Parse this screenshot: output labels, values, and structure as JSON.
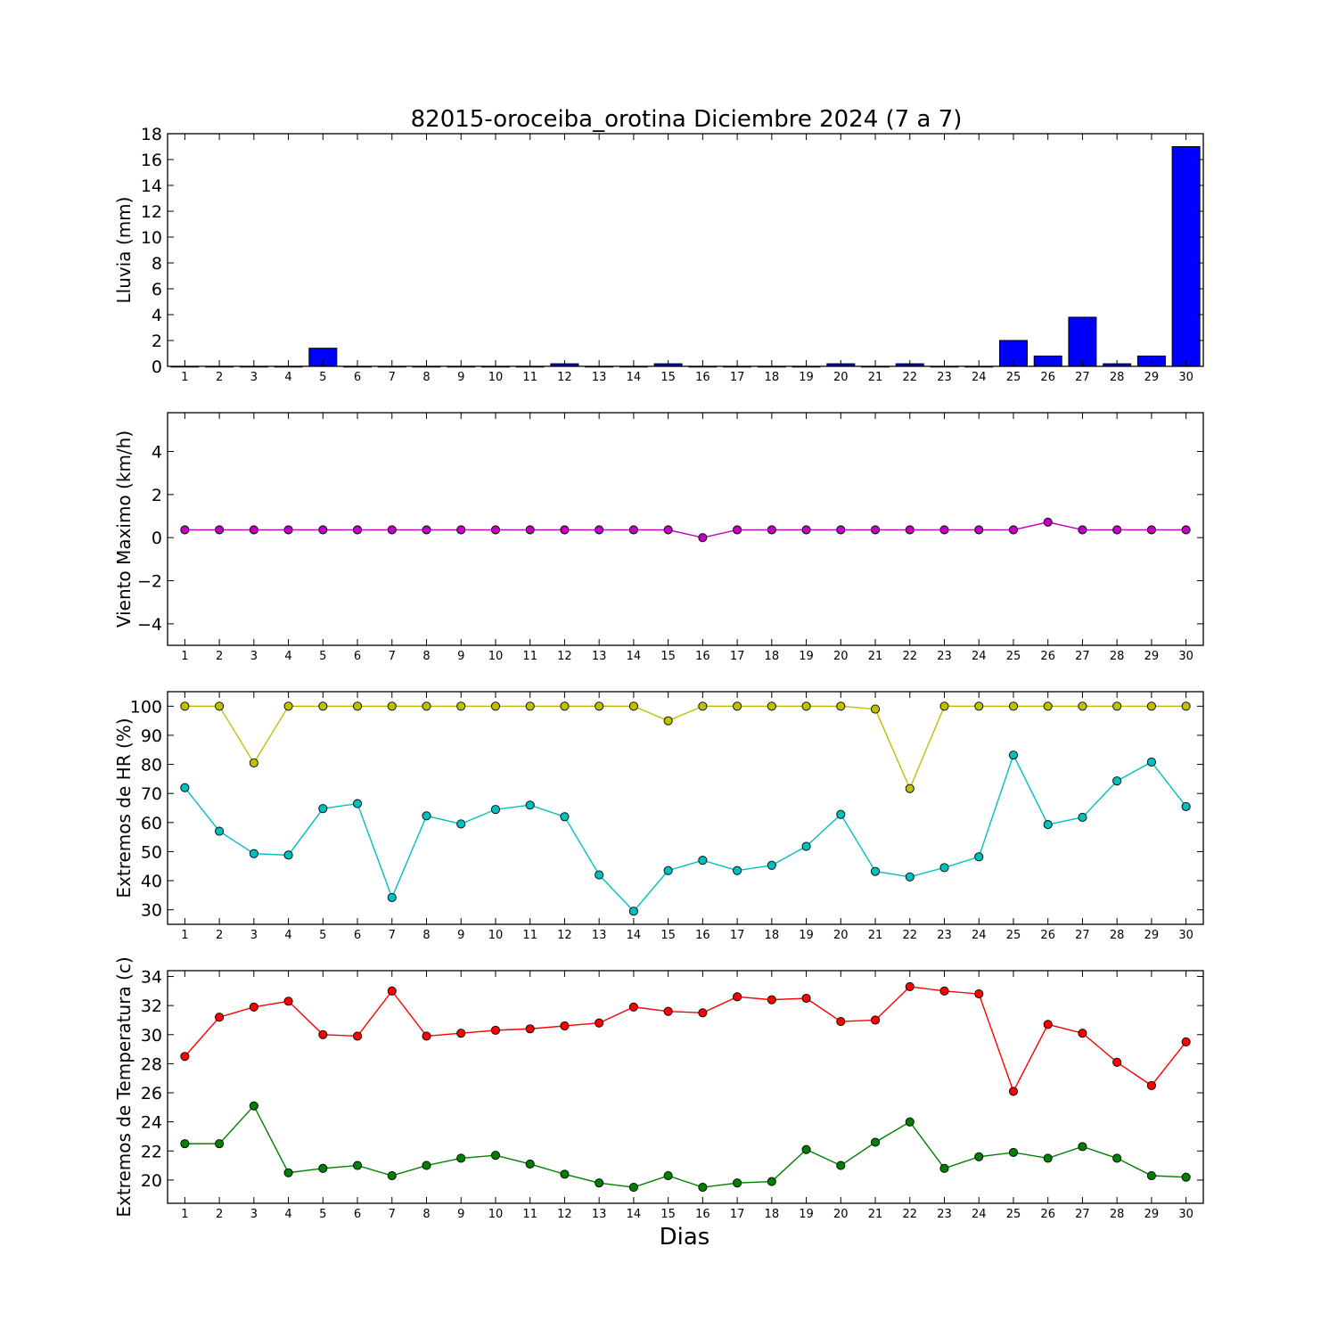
{
  "title": "82015-oroceiba_orotina Diciembre 2024  (7 a 7)",
  "xlabel": "Dias",
  "days": [
    1,
    2,
    3,
    4,
    5,
    6,
    7,
    8,
    9,
    10,
    11,
    12,
    13,
    14,
    15,
    16,
    17,
    18,
    19,
    20,
    21,
    22,
    23,
    24,
    25,
    26,
    27,
    28,
    29,
    30
  ],
  "chart_data": [
    {
      "type": "bar",
      "ylabel": "Lluvia (mm)",
      "ylim": [
        0,
        18
      ],
      "yticks": [
        0,
        2,
        4,
        6,
        8,
        10,
        12,
        14,
        16,
        18
      ],
      "x": [
        1,
        2,
        3,
        4,
        5,
        6,
        7,
        8,
        9,
        10,
        11,
        12,
        13,
        14,
        15,
        16,
        17,
        18,
        19,
        20,
        21,
        22,
        23,
        24,
        25,
        26,
        27,
        28,
        29,
        30
      ],
      "series": [
        {
          "color": "#0000ff",
          "values": [
            0,
            0,
            0,
            0,
            1.4,
            0,
            0,
            0,
            0,
            0,
            0,
            0.2,
            0,
            0,
            0.2,
            0,
            0,
            0,
            0,
            0.2,
            0,
            0.2,
            0,
            0,
            2.0,
            0.8,
            3.8,
            0.2,
            0.8,
            17.0
          ]
        }
      ]
    },
    {
      "type": "line",
      "ylabel": "Viento Maximo (km/h)",
      "ylim": [
        -5,
        5.8
      ],
      "yticks": [
        -4,
        -2,
        0,
        2,
        4
      ],
      "ytick_labels": [
        "−4",
        "−2",
        "0",
        "2",
        "4"
      ],
      "x": [
        1,
        2,
        3,
        4,
        5,
        6,
        7,
        8,
        9,
        10,
        11,
        12,
        13,
        14,
        15,
        16,
        17,
        18,
        19,
        20,
        21,
        22,
        23,
        24,
        25,
        26,
        27,
        28,
        29,
        30
      ],
      "series": [
        {
          "color": "#bf00bf",
          "values": [
            0.36,
            0.36,
            0.36,
            0.36,
            0.36,
            0.36,
            0.36,
            0.36,
            0.36,
            0.36,
            0.36,
            0.36,
            0.36,
            0.36,
            0.36,
            0,
            0.36,
            0.36,
            0.36,
            0.36,
            0.36,
            0.36,
            0.36,
            0.36,
            0.36,
            0.72,
            0.36,
            0.36,
            0.36,
            0.36
          ]
        }
      ]
    },
    {
      "type": "line",
      "ylabel": "Extremos de HR (%)",
      "ylim": [
        25,
        105
      ],
      "yticks": [
        30,
        40,
        50,
        60,
        70,
        80,
        90,
        100
      ],
      "x": [
        1,
        2,
        3,
        4,
        5,
        6,
        7,
        8,
        9,
        10,
        11,
        12,
        13,
        14,
        15,
        16,
        17,
        18,
        19,
        20,
        21,
        22,
        23,
        24,
        25,
        26,
        27,
        28,
        29,
        30
      ],
      "series": [
        {
          "color": "#bfbf00",
          "values": [
            100,
            100,
            80.5,
            100,
            100,
            100,
            100,
            100,
            100,
            100,
            100,
            100,
            100,
            100,
            95,
            100,
            100,
            100,
            100,
            100,
            99,
            71.7,
            100,
            100,
            100,
            100,
            100,
            100,
            100,
            100
          ]
        },
        {
          "color": "#00bfbf",
          "values": [
            72,
            57,
            49.3,
            48.8,
            64.8,
            66.5,
            34.2,
            62.3,
            59.5,
            64.5,
            66,
            62,
            42,
            29.5,
            43.5,
            47,
            43.5,
            45.3,
            51.8,
            62.8,
            43.2,
            41.3,
            44.5,
            48.2,
            83.2,
            59.3,
            61.8,
            74.3,
            80.8,
            65.5
          ]
        }
      ]
    },
    {
      "type": "line",
      "ylabel": "Extremos de Temperatura (c)",
      "ylim": [
        18.4,
        34.4
      ],
      "yticks": [
        20,
        22,
        24,
        26,
        28,
        30,
        32,
        34
      ],
      "x": [
        1,
        2,
        3,
        4,
        5,
        6,
        7,
        8,
        9,
        10,
        11,
        12,
        13,
        14,
        15,
        16,
        17,
        18,
        19,
        20,
        21,
        22,
        23,
        24,
        25,
        26,
        27,
        28,
        29,
        30
      ],
      "series": [
        {
          "color": "#ff0000",
          "values": [
            28.5,
            31.2,
            31.9,
            32.3,
            30.0,
            29.9,
            33.0,
            29.9,
            30.1,
            30.3,
            30.4,
            30.6,
            30.8,
            31.9,
            31.6,
            31.5,
            32.6,
            32.4,
            32.5,
            30.9,
            31.0,
            33.3,
            33.0,
            32.8,
            26.1,
            30.7,
            30.1,
            28.1,
            26.5,
            29.5
          ]
        },
        {
          "color": "#007f00",
          "values": [
            22.5,
            22.5,
            25.1,
            20.5,
            20.8,
            21.0,
            20.3,
            21.0,
            21.5,
            21.7,
            21.1,
            20.4,
            19.8,
            19.5,
            20.3,
            19.5,
            19.8,
            19.9,
            22.1,
            21.0,
            22.6,
            24.0,
            20.8,
            21.6,
            21.9,
            21.5,
            22.3,
            21.5,
            20.3,
            20.2
          ]
        }
      ]
    }
  ]
}
